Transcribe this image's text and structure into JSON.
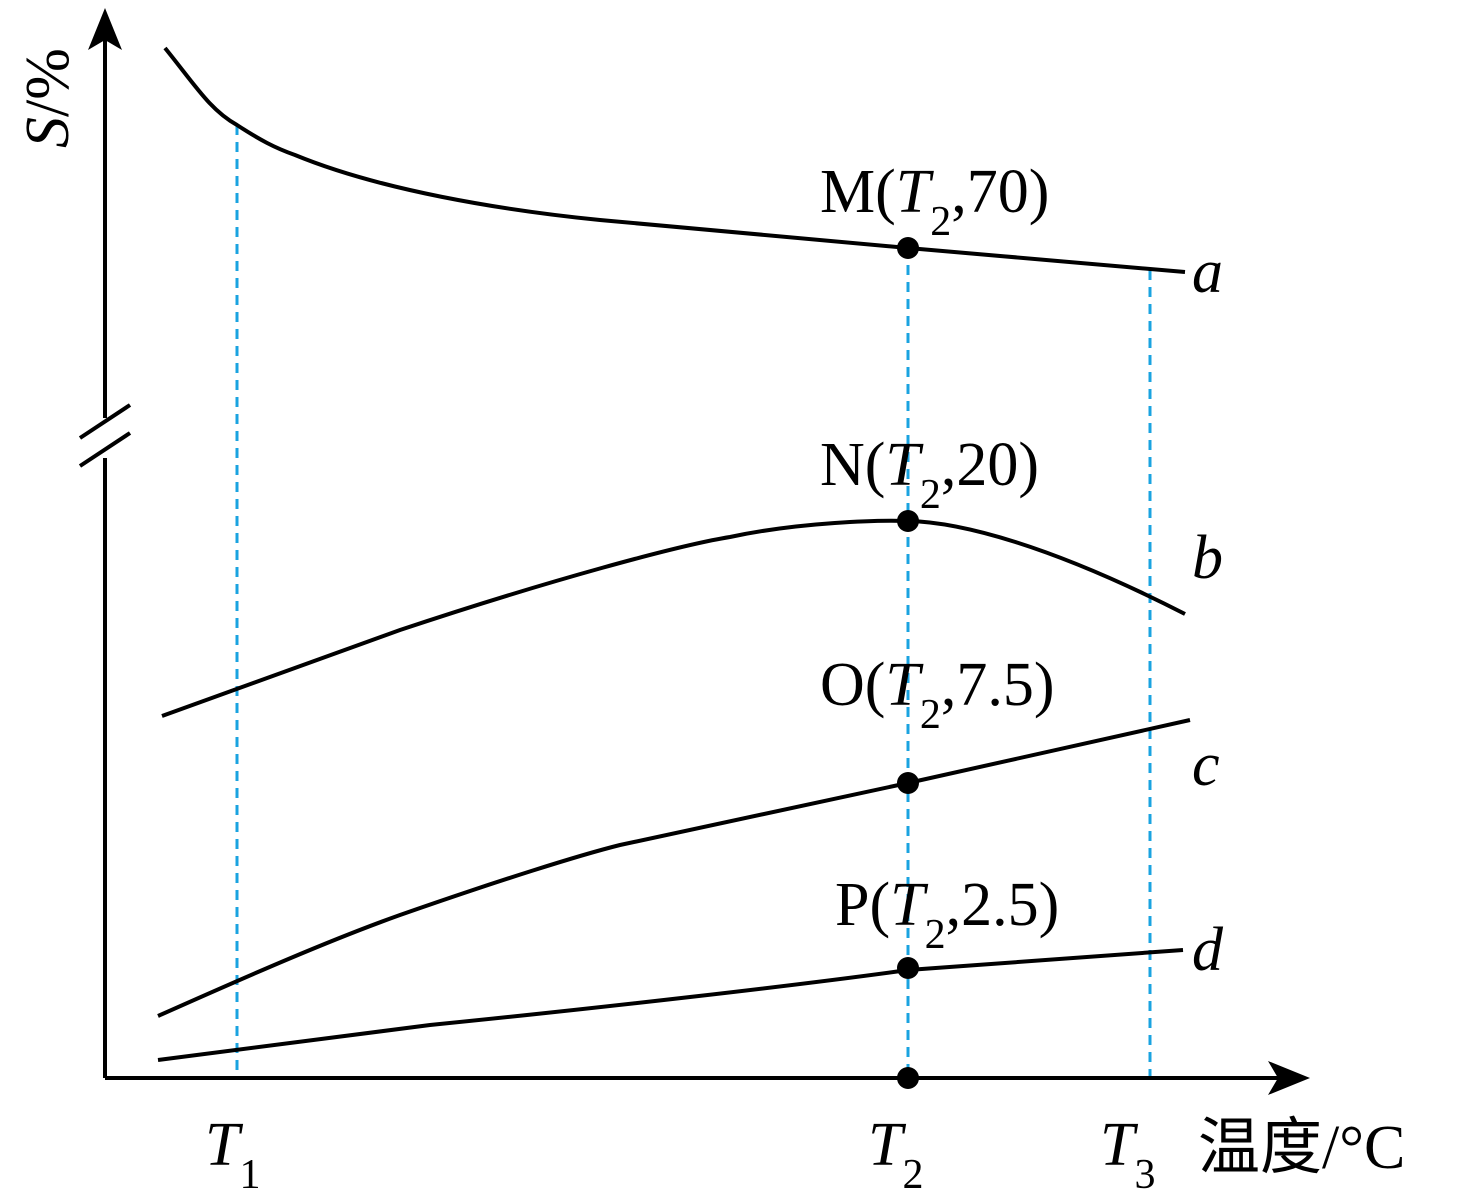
{
  "y_axis_label": [
    "S",
    "/%"
  ],
  "x_axis_label": "温度/°C",
  "x_ticks": [
    [
      "T",
      "1"
    ],
    [
      "T",
      "2"
    ],
    [
      "T",
      "3"
    ]
  ],
  "curves": [
    "a",
    "b",
    "c",
    "d"
  ],
  "points": [
    [
      "M(",
      "T",
      "2",
      ",70)"
    ],
    [
      "N(",
      "T",
      "2",
      ",20)"
    ],
    [
      "O(",
      "T",
      "2",
      ",7.5)"
    ],
    [
      "P(",
      "T",
      "2",
      ",2.5)"
    ]
  ]
}
